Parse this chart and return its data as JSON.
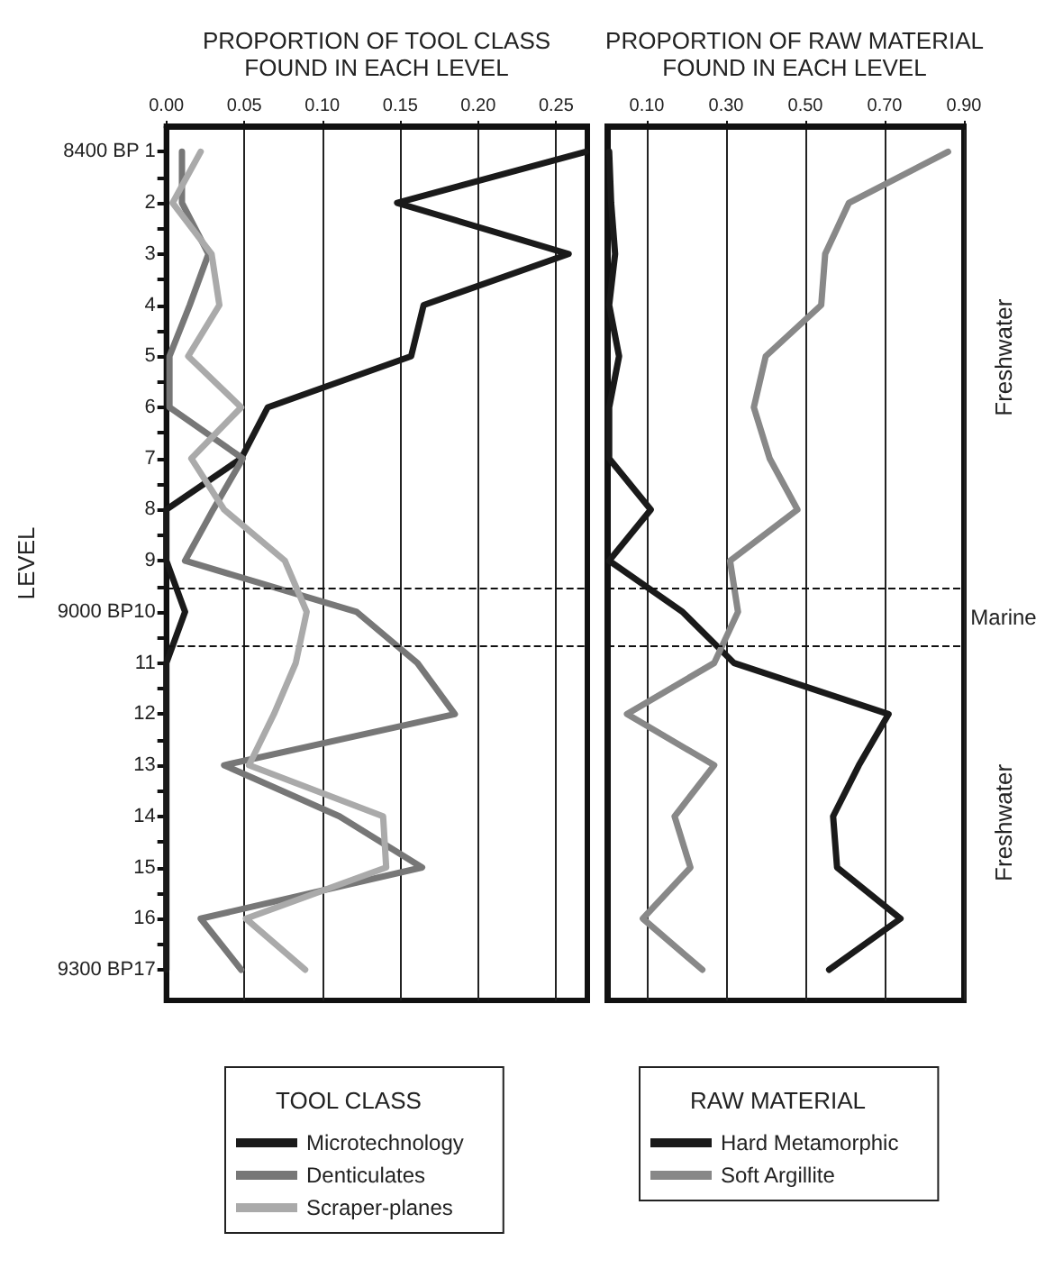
{
  "chart_data": [
    {
      "type": "line",
      "title": "PROPORTION OF TOOL CLASS\nFOUND IN EACH LEVEL",
      "ylabel": "LEVEL",
      "legend_title": "TOOL CLASS",
      "legend": "bottom",
      "grid": "x",
      "marker": "none",
      "xlim": [
        0,
        0.27
      ],
      "xticks": [
        {
          "value": 0,
          "label": "0.00"
        },
        {
          "value": 0.05,
          "label": "0.05"
        },
        {
          "value": 0.1,
          "label": "0.10"
        },
        {
          "value": 0.15,
          "label": "0.15"
        },
        {
          "value": 0.2,
          "label": "0.20"
        },
        {
          "value": 0.25,
          "label": "0.25"
        }
      ],
      "ylim": [
        17.6,
        0.5
      ],
      "yticks": [
        {
          "value": 1,
          "label": "8400 BP 1"
        },
        {
          "value": 1.5,
          "label": null
        },
        {
          "value": 2,
          "label": "2"
        },
        {
          "value": 2.5,
          "label": null
        },
        {
          "value": 3,
          "label": "3"
        },
        {
          "value": 3.5,
          "label": null
        },
        {
          "value": 4,
          "label": "4"
        },
        {
          "value": 4.5,
          "label": null
        },
        {
          "value": 5,
          "label": "5"
        },
        {
          "value": 5.5,
          "label": null
        },
        {
          "value": 6,
          "label": "6"
        },
        {
          "value": 6.5,
          "label": null
        },
        {
          "value": 7,
          "label": "7"
        },
        {
          "value": 7.5,
          "label": null
        },
        {
          "value": 8,
          "label": "8"
        },
        {
          "value": 8.5,
          "label": null
        },
        {
          "value": 9,
          "label": "9"
        },
        {
          "value": 9.5,
          "label": null
        },
        {
          "value": 10,
          "label": "9000 BP10"
        },
        {
          "value": 10.5,
          "label": null
        },
        {
          "value": 11,
          "label": "11"
        },
        {
          "value": 11.5,
          "label": null
        },
        {
          "value": 12,
          "label": "12"
        },
        {
          "value": 12.5,
          "label": null
        },
        {
          "value": 13,
          "label": "13"
        },
        {
          "value": 13.5,
          "label": null
        },
        {
          "value": 14,
          "label": "14"
        },
        {
          "value": 14.5,
          "label": null
        },
        {
          "value": 15,
          "label": "15"
        },
        {
          "value": 15.5,
          "label": null
        },
        {
          "value": 16,
          "label": "16"
        },
        {
          "value": 16.5,
          "label": null
        },
        {
          "value": 17,
          "label": "9300 BP17"
        }
      ],
      "ref_lines": [
        {
          "axis": "y",
          "value": 9.55,
          "line_style": "dashed"
        },
        {
          "axis": "y",
          "value": 10.65,
          "line_style": "dashed"
        }
      ],
      "series": [
        {
          "name": "Microtechnology",
          "color": "#1a1a1a",
          "x": [
            0.269,
            0.148,
            0.258,
            0.165,
            0.157,
            0.065,
            0.048,
            0,
            0,
            0.012,
            0,
            0,
            0,
            0,
            0,
            0,
            0
          ],
          "values": [
            1,
            2,
            3,
            4,
            5,
            6,
            7,
            8,
            9,
            10,
            11,
            12,
            13,
            14,
            15,
            16,
            17
          ]
        },
        {
          "name": "Denticulates",
          "color": "#777777",
          "x": [
            0.01,
            0.01,
            0.027,
            0.015,
            0.002,
            0.002,
            0.049,
            0.03,
            0.012,
            0.122,
            0.161,
            0.185,
            0.037,
            0.111,
            0.164,
            0.022,
            0.048
          ],
          "values": [
            1,
            2,
            3,
            4,
            5,
            6,
            7,
            8,
            9,
            10,
            11,
            12,
            13,
            14,
            15,
            16,
            17
          ]
        },
        {
          "name": "Scraper-planes",
          "color": "#aaaaaa",
          "x": [
            0.022,
            0.004,
            0.029,
            0.034,
            0.014,
            0.048,
            0.016,
            0.037,
            0.076,
            0.09,
            0.083,
            0.069,
            0.053,
            0.139,
            0.141,
            0.051,
            0.089
          ],
          "values": [
            1,
            2,
            3,
            4,
            5,
            6,
            7,
            8,
            9,
            10,
            11,
            12,
            13,
            14,
            15,
            16,
            17
          ]
        }
      ]
    },
    {
      "type": "line",
      "title": "PROPORTION OF RAW MATERIAL\nFOUND IN EACH LEVEL",
      "legend_title": "RAW MATERIAL",
      "legend": "bottom",
      "grid": "x",
      "marker": "none",
      "tick_labels": "x",
      "xlim": [
        0,
        0.9
      ],
      "xticks": [
        {
          "value": 0.1,
          "label": "0.10"
        },
        {
          "value": 0.3,
          "label": "0.30"
        },
        {
          "value": 0.5,
          "label": "0.50"
        },
        {
          "value": 0.7,
          "label": "0.70"
        },
        {
          "value": 0.9,
          "label": "0.90"
        }
      ],
      "ylim": [
        17.6,
        0.5
      ],
      "ref_lines": [
        {
          "axis": "y",
          "value": 9.55,
          "line_style": "dashed"
        },
        {
          "axis": "y",
          "value": 10.65,
          "line_style": "dashed"
        }
      ],
      "annotations": [
        "Freshwater",
        "Marine",
        "Freshwater"
      ],
      "series": [
        {
          "name": "Hard Metamorphic",
          "color": "#1a1a1a",
          "x": [
            0.005,
            0.01,
            0.02,
            0.005,
            0.03,
            0.005,
            0.005,
            0.11,
            0.005,
            0.19,
            0.32,
            0.71,
            0.635,
            0.57,
            0.58,
            0.74,
            0.56
          ],
          "values": [
            1,
            2,
            3,
            4,
            5,
            6,
            7,
            8,
            9,
            10,
            11,
            12,
            13,
            14,
            15,
            16,
            17
          ]
        },
        {
          "name": "Soft Argillite",
          "color": "#888888",
          "x": [
            0.86,
            0.61,
            0.55,
            0.54,
            0.4,
            0.37,
            0.41,
            0.48,
            0.31,
            0.33,
            0.27,
            0.05,
            0.27,
            0.17,
            0.21,
            0.09,
            0.24
          ],
          "values": [
            1,
            2,
            3,
            4,
            5,
            6,
            7,
            8,
            9,
            10,
            11,
            12,
            13,
            14,
            15,
            16,
            17
          ]
        }
      ]
    }
  ]
}
